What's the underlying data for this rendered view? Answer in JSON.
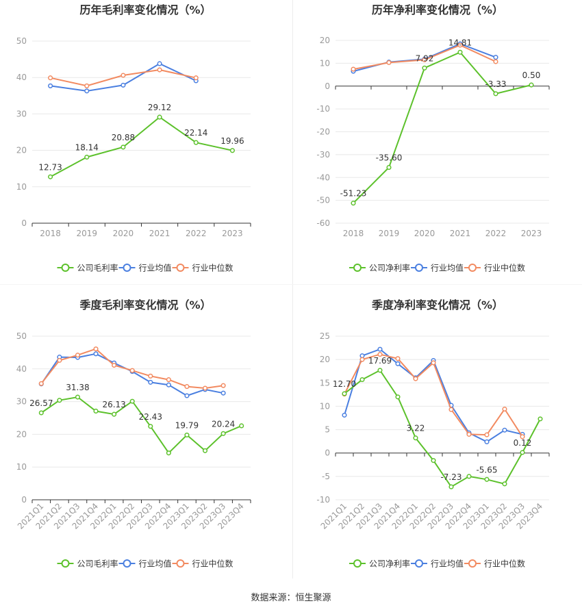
{
  "source": "数据来源：恒生聚源",
  "colors": {
    "company": "#5cc12b",
    "avg": "#4a7fe0",
    "median": "#f28a60",
    "grid": "#e8e8e8",
    "axis": "#333333",
    "tick": "#999999",
    "label": "#333333"
  },
  "chart_data": [
    {
      "type": "line",
      "title": "历年毛利率变化情况（%）",
      "categories": [
        "2018",
        "2019",
        "2020",
        "2021",
        "2022",
        "2023"
      ],
      "ylim": [
        0,
        50
      ],
      "yticks": [
        0,
        10,
        20,
        30,
        40,
        50
      ],
      "grid": true,
      "legend": "bottom",
      "series": [
        {
          "name": "公司毛利率",
          "color": "#5cc12b",
          "values": [
            12.73,
            18.14,
            20.88,
            29.12,
            22.14,
            19.96
          ],
          "labels": [
            "12.73",
            "18.14",
            "20.88",
            "29.12",
            "22.14",
            "19.96"
          ]
        },
        {
          "name": "行业均值",
          "color": "#4a7fe0",
          "values": [
            37.7,
            36.3,
            37.9,
            43.8,
            39.1,
            null
          ]
        },
        {
          "name": "行业中位数",
          "color": "#f28a60",
          "values": [
            39.9,
            37.7,
            40.6,
            42.1,
            39.9,
            null
          ]
        }
      ]
    },
    {
      "type": "line",
      "title": "历年净利率变化情况（%）",
      "categories": [
        "2018",
        "2019",
        "2020",
        "2021",
        "2022",
        "2023"
      ],
      "ylim": [
        -60,
        20
      ],
      "yticks": [
        -60,
        -50,
        -40,
        -30,
        -20,
        -10,
        0,
        10,
        20
      ],
      "grid": true,
      "legend": "bottom",
      "series": [
        {
          "name": "公司净利率",
          "color": "#5cc12b",
          "values": [
            -51.23,
            -35.6,
            7.92,
            14.81,
            -3.33,
            0.5
          ],
          "labels": [
            "-51.23",
            "-35.60",
            "7.92",
            "14.81",
            "-3.33",
            "0.50"
          ]
        },
        {
          "name": "行业均值",
          "color": "#4a7fe0",
          "values": [
            6.5,
            10.5,
            11.8,
            18.5,
            12.6,
            null
          ]
        },
        {
          "name": "行业中位数",
          "color": "#f28a60",
          "values": [
            7.4,
            10.3,
            11.5,
            17.9,
            10.7,
            null
          ]
        }
      ]
    },
    {
      "type": "line",
      "title": "季度毛利率变化情况（%）",
      "categories": [
        "2021Q1",
        "2021Q2",
        "2021Q3",
        "2021Q4",
        "2022Q1",
        "2022Q2",
        "2022Q3",
        "2022Q4",
        "2023Q1",
        "2023Q2",
        "2023Q3",
        "2023Q4"
      ],
      "ylim": [
        0,
        50
      ],
      "yticks": [
        0,
        10,
        20,
        30,
        40,
        50
      ],
      "grid": true,
      "legend": "bottom",
      "series": [
        {
          "name": "公司毛利率",
          "color": "#5cc12b",
          "values": [
            26.57,
            30.4,
            31.38,
            27.1,
            26.13,
            30.1,
            22.43,
            14.3,
            19.79,
            15.0,
            20.24,
            22.6
          ],
          "labels": [
            "26.57",
            "",
            "31.38",
            "",
            "26.13",
            "",
            "22.43",
            "",
            "19.79",
            "",
            "20.24",
            ""
          ]
        },
        {
          "name": "行业均值",
          "color": "#4a7fe0",
          "values": [
            35.4,
            43.6,
            43.5,
            44.6,
            41.8,
            39.2,
            35.9,
            35.1,
            31.8,
            33.7,
            32.6,
            null
          ]
        },
        {
          "name": "行业中位数",
          "color": "#f28a60",
          "values": [
            35.5,
            42.6,
            44.2,
            46.1,
            41.1,
            39.5,
            37.8,
            36.7,
            34.6,
            34.1,
            34.9,
            null
          ]
        }
      ]
    },
    {
      "type": "line",
      "title": "季度净利率变化情况（%）",
      "categories": [
        "2021Q1",
        "2021Q2",
        "2021Q3",
        "2021Q4",
        "2022Q1",
        "2022Q2",
        "2022Q3",
        "2022Q4",
        "2023Q1",
        "2023Q2",
        "2023Q3",
        "2023Q4"
      ],
      "ylim": [
        -10,
        25
      ],
      "yticks": [
        -10,
        -5,
        0,
        5,
        10,
        15,
        20,
        25
      ],
      "grid": true,
      "legend": "bottom",
      "series": [
        {
          "name": "公司净利率",
          "color": "#5cc12b",
          "values": [
            12.7,
            15.7,
            17.69,
            12.0,
            3.22,
            -1.6,
            -7.23,
            -5.0,
            -5.65,
            -6.6,
            0.12,
            7.3
          ],
          "labels": [
            "12.70",
            "",
            "17.69",
            "",
            "3.22",
            "",
            "-7.23",
            "",
            "-5.65",
            "",
            "0.12",
            ""
          ]
        },
        {
          "name": "行业均值",
          "color": "#4a7fe0",
          "values": [
            8.1,
            20.8,
            22.2,
            19.1,
            16.1,
            19.8,
            10.2,
            4.3,
            2.4,
            4.9,
            4.0,
            null
          ]
        },
        {
          "name": "行业中位数",
          "color": "#f28a60",
          "values": [
            12.6,
            20.0,
            21.1,
            20.2,
            15.9,
            19.3,
            9.3,
            4.0,
            3.9,
            9.4,
            3.5,
            null
          ]
        }
      ]
    }
  ]
}
